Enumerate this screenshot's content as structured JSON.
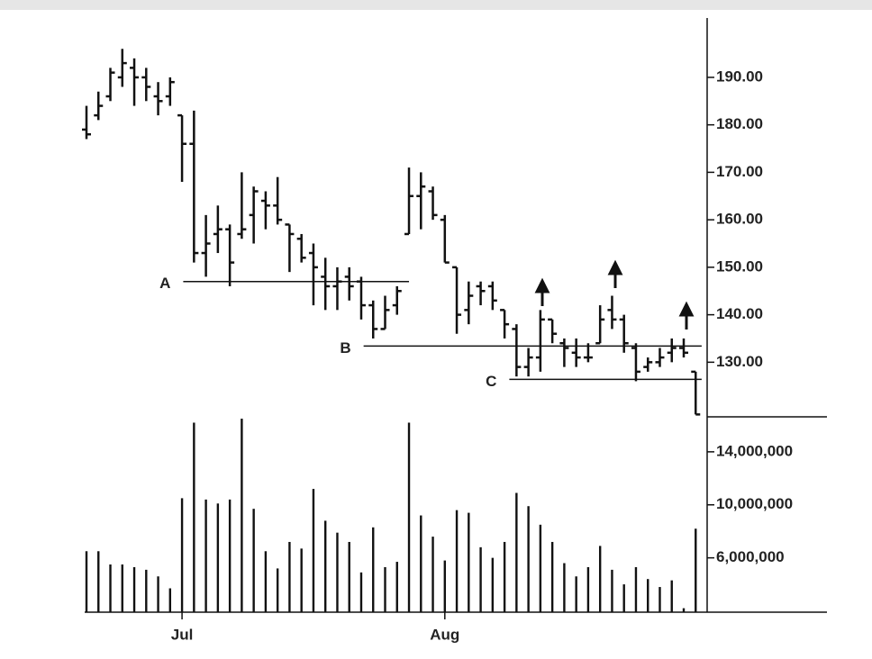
{
  "chart_data": [
    {
      "type": "ohlc",
      "open": [
        179,
        182,
        186,
        190,
        192,
        190,
        186,
        186,
        182,
        176,
        153,
        157,
        158,
        157,
        161,
        164,
        163,
        159,
        156,
        153,
        148,
        146,
        148,
        147,
        142,
        137,
        142,
        157,
        165,
        166,
        160,
        150,
        141,
        146,
        146,
        141,
        137,
        129,
        131,
        139,
        134,
        132,
        131,
        134,
        141,
        139,
        133,
        129,
        130,
        132,
        133,
        128
      ],
      "high": [
        184,
        187,
        192,
        196,
        194,
        192,
        189,
        190,
        182,
        183,
        161,
        163,
        159,
        170,
        167,
        166,
        169,
        159,
        157,
        155,
        152,
        150,
        150,
        148,
        143,
        144,
        146,
        171,
        170,
        167,
        161,
        150,
        147,
        147,
        147,
        141,
        138,
        133,
        141,
        139,
        135,
        135,
        134,
        142,
        144,
        140,
        134,
        131,
        133,
        135,
        135,
        128
      ],
      "low": [
        177,
        181,
        185,
        188,
        184,
        185,
        182,
        184,
        168,
        151,
        148,
        153,
        146,
        156,
        155,
        158,
        159,
        149,
        151,
        142,
        141,
        141,
        143,
        139,
        135,
        137,
        140,
        157,
        158,
        160,
        151,
        136,
        138,
        142,
        141,
        135,
        127,
        127,
        128,
        134,
        129,
        129,
        130,
        134,
        137,
        132,
        126,
        128,
        129,
        130,
        131,
        119
      ],
      "close": [
        178,
        184,
        191,
        193,
        190,
        188,
        185,
        189,
        176,
        153,
        155,
        158,
        151,
        158,
        166,
        163,
        160,
        157,
        152,
        150,
        146,
        147,
        146,
        142,
        137,
        141,
        145,
        165,
        167,
        161,
        151,
        140,
        144,
        145,
        143,
        138,
        129,
        131,
        139,
        136,
        133,
        131,
        131,
        139,
        139,
        134,
        128,
        130,
        131,
        133,
        132,
        119
      ],
      "color": "#111",
      "ylim": [
        118.5,
        202.5
      ],
      "yticks": [
        {
          "value": 130,
          "label": "130.00"
        },
        {
          "value": 140,
          "label": "140.00"
        },
        {
          "value": 150,
          "label": "150.00"
        },
        {
          "value": 160,
          "label": "160.00"
        },
        {
          "value": 170,
          "label": "170.00"
        },
        {
          "value": 180,
          "label": "180.00"
        },
        {
          "value": 190,
          "label": "190.00"
        }
      ],
      "hlines": [
        {
          "label": "A",
          "value": 147,
          "x_from": 8.1,
          "x_to": 27
        },
        {
          "label": "B",
          "value": 133.4,
          "x_from": 23.2,
          "x_to": 51.5
        },
        {
          "label": "C",
          "value": 126.4,
          "x_from": 35.4,
          "x_to": 51.5
        }
      ]
    },
    {
      "type": "bar",
      "categories": [
        null,
        null,
        null,
        null,
        null,
        null,
        null,
        null,
        "Jul",
        null,
        null,
        null,
        null,
        null,
        null,
        null,
        null,
        null,
        null,
        null,
        null,
        null,
        null,
        null,
        null,
        null,
        null,
        null,
        null,
        null,
        "Aug",
        null,
        null,
        null,
        null,
        null,
        null,
        null,
        null,
        null,
        null,
        null,
        null,
        null,
        null,
        null,
        null,
        null,
        null,
        null,
        null,
        null
      ],
      "values": [
        6500000,
        6500000,
        5500000,
        5500000,
        5300000,
        5100000,
        4600000,
        3700000,
        10500000,
        16200000,
        10400000,
        10100000,
        10400000,
        16500000,
        9700000,
        6500000,
        5200000,
        7200000,
        6700000,
        11200000,
        8800000,
        7900000,
        7200000,
        4900000,
        8300000,
        5300000,
        5700000,
        16200000,
        9200000,
        7600000,
        5800000,
        9600000,
        9400000,
        6800000,
        6000000,
        7200000,
        10900000,
        9900000,
        8500000,
        7200000,
        5600000,
        4600000,
        5300000,
        6900000,
        5100000,
        4000000,
        5300000,
        4400000,
        3800000,
        4300000,
        2200000,
        8200000
      ],
      "color": "#111",
      "ylim": [
        1900000,
        16640000
      ],
      "yticks": [
        {
          "value": 6000000,
          "label": "6,000,000"
        },
        {
          "value": 10000000,
          "label": "10,000,000"
        },
        {
          "value": 14000000,
          "label": "14,000,000"
        }
      ]
    }
  ]
}
